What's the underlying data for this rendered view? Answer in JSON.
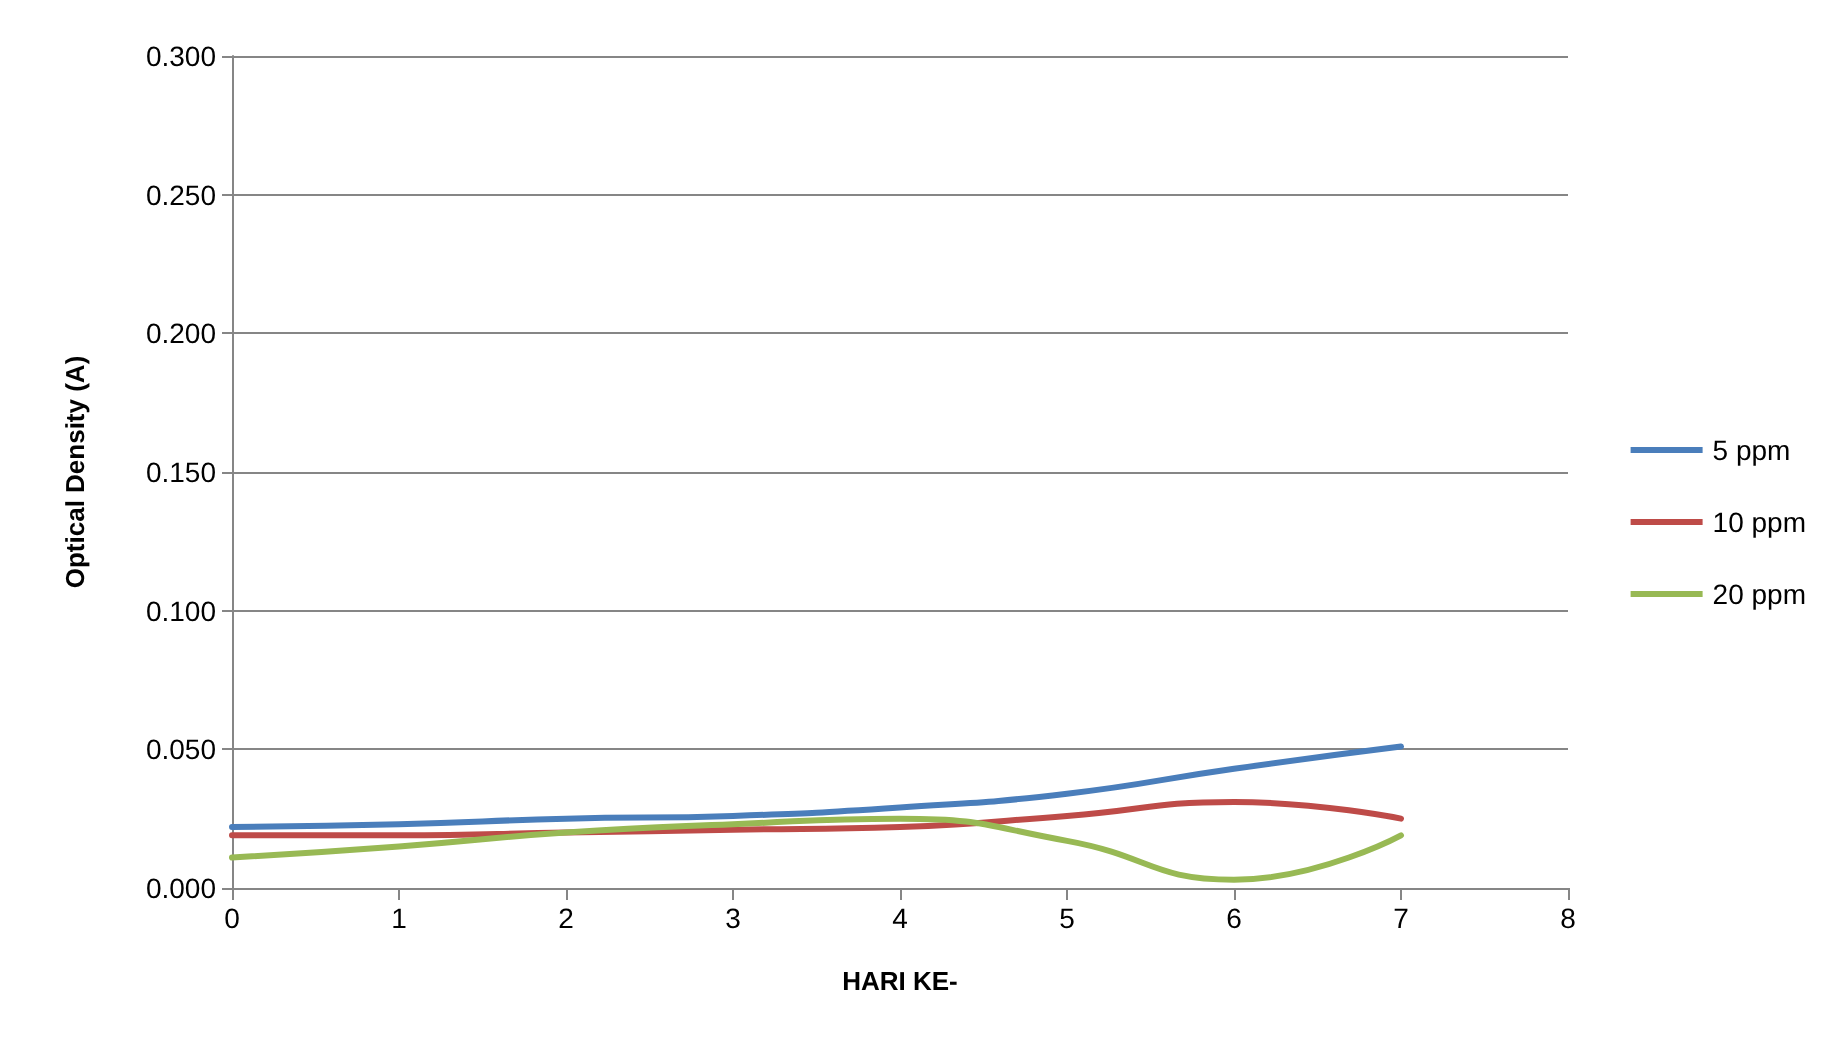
{
  "chart_data": {
    "type": "line",
    "xlabel": "HARI KE-",
    "ylabel": "Optical Density (A)",
    "x": [
      0,
      1,
      2,
      3,
      4,
      5,
      6,
      7
    ],
    "series": [
      {
        "name": "5 ppm",
        "color": "#4a7ebb",
        "values": [
          0.022,
          0.023,
          0.025,
          0.026,
          0.029,
          0.034,
          0.043,
          0.051
        ]
      },
      {
        "name": "10 ppm",
        "color": "#be4b48",
        "values": [
          0.019,
          0.019,
          0.02,
          0.021,
          0.022,
          0.026,
          0.031,
          0.025
        ]
      },
      {
        "name": "20 ppm",
        "color": "#98b954",
        "values": [
          0.011,
          0.015,
          0.02,
          0.023,
          0.025,
          0.017,
          0.003,
          0.019
        ]
      }
    ],
    "xlim": [
      0,
      8
    ],
    "xticks": [
      0,
      1,
      2,
      3,
      4,
      5,
      6,
      7,
      8
    ],
    "ylim": [
      0,
      0.3
    ],
    "yticks": [
      {
        "value": 0,
        "label": "0.000"
      },
      {
        "value": 0.05,
        "label": "0.050"
      },
      {
        "value": 0.1,
        "label": "0.100"
      },
      {
        "value": 0.15,
        "label": "0.150"
      },
      {
        "value": 0.2,
        "label": "0.200"
      },
      {
        "value": 0.25,
        "label": "0.250"
      },
      {
        "value": 0.3,
        "label": "0.300"
      }
    ],
    "grid": "y",
    "legend": "right",
    "marker": "none",
    "line_style": "solid"
  }
}
